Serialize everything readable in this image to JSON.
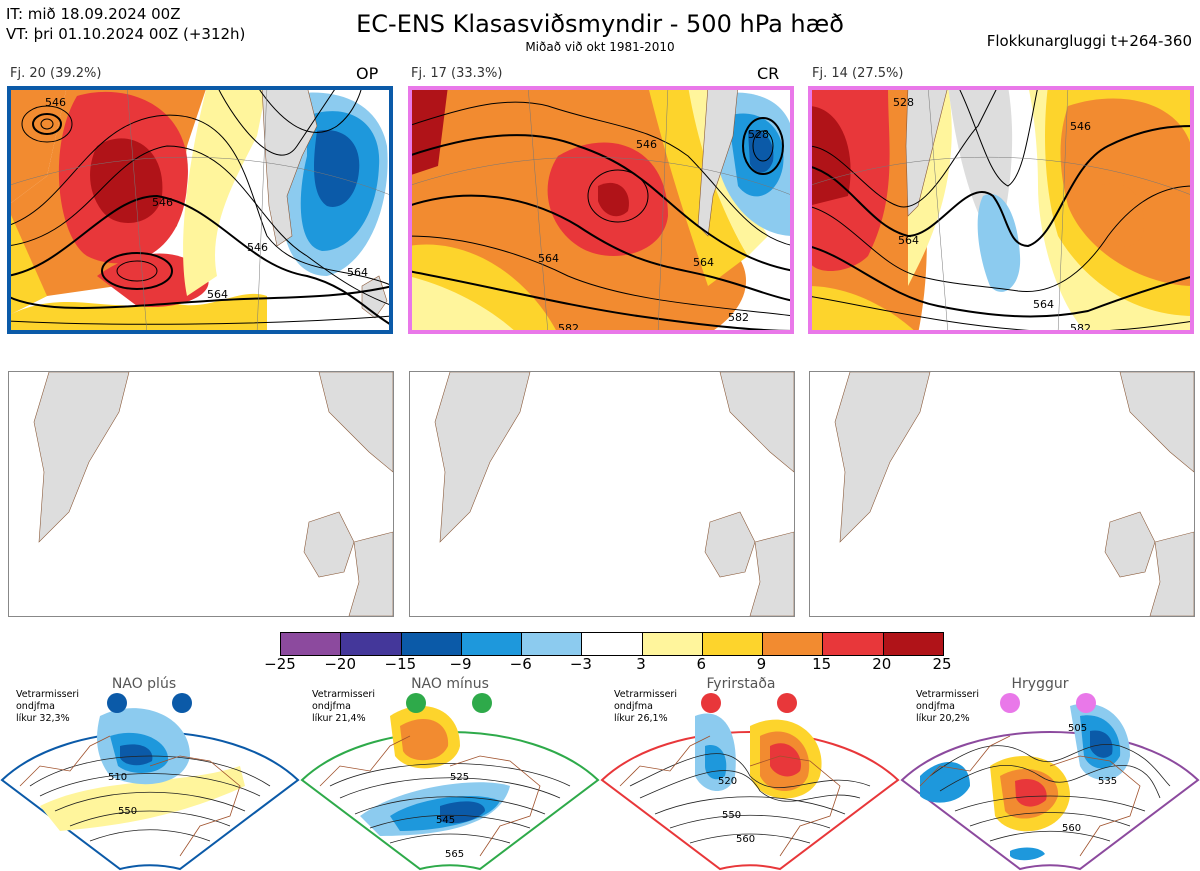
{
  "header": {
    "it": "IT: mið 18.09.2024 00Z",
    "vt": "VT: þri 01.10.2024 00Z  (+312h)",
    "title": "EC-ENS Klasasviðsmyndir - 500 hPa hæð",
    "subtitle": "Miðað við okt 1981-2010",
    "window": "Flokkunargluggi t+264-360"
  },
  "clusters": [
    {
      "label": "Fj. 20 (39.2%)",
      "tag": "OP",
      "frame_color": "#0b5aa8",
      "contours": [
        "546",
        "564",
        "546",
        "564",
        "546"
      ]
    },
    {
      "label": "Fj. 17 (33.3%)",
      "tag": "CR",
      "frame_color": "#e978e9",
      "contours": [
        "546",
        "564",
        "564",
        "582",
        "582",
        "528"
      ]
    },
    {
      "label": "Fj. 14 (27.5%)",
      "tag": "",
      "frame_color": "#e978e9",
      "contours": [
        "546",
        "564",
        "564",
        "582",
        "528"
      ]
    }
  ],
  "colorbar": {
    "labels": [
      "−25",
      "−20",
      "−15",
      "−9",
      "−6",
      "−3",
      "3",
      "6",
      "9",
      "15",
      "20",
      "25"
    ],
    "colors": [
      "#8c4a9e",
      "#44379a",
      "#0b5aa8",
      "#1e98dc",
      "#8ccbef",
      "#ffffff",
      "#fff59c",
      "#fdd42c",
      "#f28b30",
      "#e8373a",
      "#b01318"
    ]
  },
  "regimes": [
    {
      "name": "NAO plús",
      "note": [
        "Vetrarmisseri",
        "ondjfma",
        "líkur 32,3%"
      ],
      "color": "#0b5aa8",
      "contours": [
        "510",
        "550"
      ]
    },
    {
      "name": "NAO mínus",
      "note": [
        "Vetrarmisseri",
        "ondjfma",
        "líkur 21,4%"
      ],
      "color": "#2eaa4a",
      "contours": [
        "525",
        "545",
        "565"
      ]
    },
    {
      "name": "Fyrirstaða",
      "note": [
        "Vetrarmisseri",
        "ondjfma",
        "líkur 26,1%"
      ],
      "color": "#e8373a",
      "contours": [
        "520",
        "550",
        "560"
      ]
    },
    {
      "name": "Hryggur",
      "note": [
        "Vetrarmisseri",
        "ondjfma",
        "líkur 20,2%"
      ],
      "color": "#e978e9",
      "contours": [
        "505",
        "535",
        "560"
      ]
    }
  ]
}
